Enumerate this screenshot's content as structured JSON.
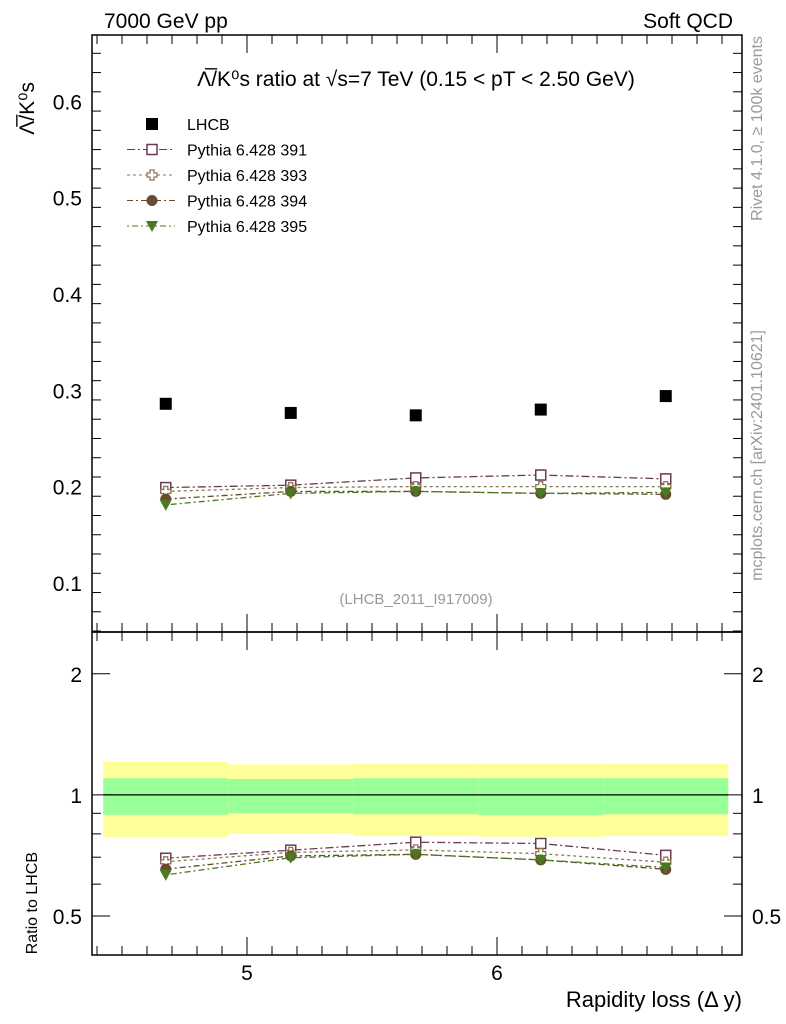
{
  "header": {
    "left": "7000 GeV pp",
    "right": "Soft QCD"
  },
  "side": {
    "rivet": "Rivet 4.1.0, ≥ 100k events",
    "mcplots": "mcplots.cern.ch [arXiv:2401.10621]"
  },
  "chart_data": [
    {
      "type": "scatter",
      "title": "Λ̅/K⁰s ratio at √s=7 TeV (0.15 < pT < 2.50 GeV)",
      "title_parts": {
        "a": "Λ",
        "b": "/K",
        "c": "0",
        "d": "s",
        "e": " ratio at ",
        "f": "√",
        "g": "s=7 TeV (0.15 < p",
        "h": "T",
        "i": " < 2.50 GeV)"
      },
      "ylabel": "Λ̅/K⁰s",
      "ylim": [
        0.049,
        0.669
      ],
      "xlim": [
        4.38,
        6.98
      ],
      "yticks": [
        "0.1",
        "0.2",
        "0.3",
        "0.4",
        "0.5",
        "0.6"
      ],
      "watermark": "(LHCB_2011_I917009)",
      "x": [
        4.675,
        5.175,
        5.675,
        6.175,
        6.675
      ],
      "series": [
        {
          "name": "LHCB",
          "values": [
            0.286,
            0.2765,
            0.274,
            0.28,
            0.294
          ],
          "color": "#000000",
          "marker": "square-filled"
        },
        {
          "name": "Pythia 6.428 391",
          "values": [
            0.199,
            0.2015,
            0.209,
            0.212,
            0.208
          ],
          "color": "#6b3a55",
          "marker": "square-open"
        },
        {
          "name": "Pythia 6.428 393",
          "values": [
            0.195,
            0.199,
            0.2,
            0.2,
            0.2
          ],
          "color": "#8a7a50",
          "marker": "cross-open"
        },
        {
          "name": "Pythia 6.428 394",
          "values": [
            0.187,
            0.195,
            0.195,
            0.193,
            0.192
          ],
          "color": "#6a4a30",
          "marker": "circle"
        },
        {
          "name": "Pythia 6.428 395",
          "values": [
            0.181,
            0.193,
            0.195,
            0.193,
            0.194
          ],
          "color": "#4a7a20",
          "marker": "triangle-down"
        }
      ]
    },
    {
      "type": "scatter",
      "ylabel": "Ratio to LHCB",
      "xlabel": "Rapidity loss (Δ y)",
      "yscale": "log",
      "ylim": [
        0.4,
        2.54
      ],
      "yticks": [
        "0.5",
        "1",
        "2"
      ],
      "xticks": [
        "5",
        "6"
      ],
      "bins": [
        [
          4.425,
          4.925
        ],
        [
          4.925,
          5.425
        ],
        [
          5.425,
          5.925
        ],
        [
          5.925,
          6.425
        ],
        [
          6.425,
          6.925
        ]
      ],
      "band_total": [
        [
          0.786,
          1.208
        ],
        [
          0.8,
          1.19
        ],
        [
          0.79,
          1.195
        ],
        [
          0.787,
          1.195
        ],
        [
          0.79,
          1.195
        ]
      ],
      "band_stat": [
        [
          0.892,
          1.1
        ],
        [
          0.9,
          1.095
        ],
        [
          0.895,
          1.1
        ],
        [
          0.89,
          1.1
        ],
        [
          0.895,
          1.1
        ]
      ],
      "colors": {
        "total": "#ffff99",
        "stat": "#99ff99"
      }
    }
  ]
}
